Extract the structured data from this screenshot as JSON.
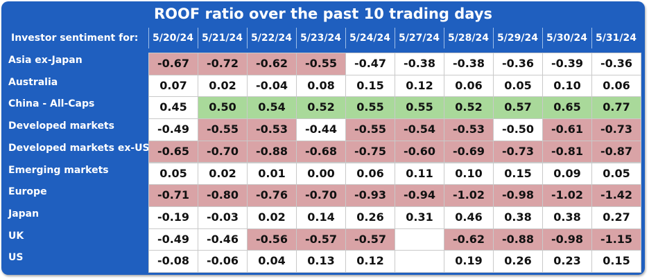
{
  "title": "ROOF ratio over the past 10 trading days",
  "chart_data": {
    "type": "table",
    "title": "ROOF ratio over the past 10 trading days",
    "corner_header": "Investor sentiment for:",
    "columns": [
      "5/20/24",
      "5/21/24",
      "5/22/24",
      "5/23/24",
      "5/24/24",
      "5/27/24",
      "5/28/24",
      "5/29/24",
      "5/30/24",
      "5/31/24"
    ],
    "rows": [
      {
        "label": "Asia ex-Japan",
        "values": [
          "-0.67",
          "-0.72",
          "-0.62",
          "-0.55",
          "-0.47",
          "-0.38",
          "-0.38",
          "-0.36",
          "-0.39",
          "-0.36"
        ],
        "highlights": [
          "neg",
          "neg",
          "neg",
          "neg",
          "none",
          "none",
          "none",
          "none",
          "none",
          "none"
        ]
      },
      {
        "label": "Australia",
        "values": [
          "0.07",
          "0.02",
          "-0.04",
          "0.08",
          "0.15",
          "0.12",
          "0.06",
          "0.05",
          "0.10",
          "0.06"
        ],
        "highlights": [
          "none",
          "none",
          "none",
          "none",
          "none",
          "none",
          "none",
          "none",
          "none",
          "none"
        ]
      },
      {
        "label": "China - All-Caps",
        "values": [
          "0.45",
          "0.50",
          "0.54",
          "0.52",
          "0.55",
          "0.55",
          "0.52",
          "0.57",
          "0.65",
          "0.77"
        ],
        "highlights": [
          "none",
          "pos",
          "pos",
          "pos",
          "pos",
          "pos",
          "pos",
          "pos",
          "pos",
          "pos"
        ]
      },
      {
        "label": "Developed markets",
        "values": [
          "-0.49",
          "-0.55",
          "-0.53",
          "-0.44",
          "-0.55",
          "-0.54",
          "-0.53",
          "-0.50",
          "-0.61",
          "-0.73"
        ],
        "highlights": [
          "none",
          "neg",
          "neg",
          "none",
          "neg",
          "neg",
          "neg",
          "none",
          "neg",
          "neg"
        ]
      },
      {
        "label": "Developed markets ex-US",
        "values": [
          "-0.65",
          "-0.70",
          "-0.88",
          "-0.68",
          "-0.75",
          "-0.60",
          "-0.69",
          "-0.73",
          "-0.81",
          "-0.87"
        ],
        "highlights": [
          "neg",
          "neg",
          "neg",
          "neg",
          "neg",
          "neg",
          "neg",
          "neg",
          "neg",
          "neg"
        ]
      },
      {
        "label": "Emerging markets",
        "values": [
          "0.05",
          "0.02",
          "0.01",
          "0.00",
          "0.06",
          "0.11",
          "0.10",
          "0.15",
          "0.09",
          "0.05"
        ],
        "highlights": [
          "none",
          "none",
          "none",
          "none",
          "none",
          "none",
          "none",
          "none",
          "none",
          "none"
        ]
      },
      {
        "label": "Europe",
        "values": [
          "-0.71",
          "-0.80",
          "-0.76",
          "-0.70",
          "-0.93",
          "-0.94",
          "-1.02",
          "-0.98",
          "-1.02",
          "-1.42"
        ],
        "highlights": [
          "neg",
          "neg",
          "neg",
          "neg",
          "neg",
          "neg",
          "neg",
          "neg",
          "neg",
          "neg"
        ]
      },
      {
        "label": "Japan",
        "values": [
          "-0.19",
          "-0.03",
          "0.02",
          "0.14",
          "0.26",
          "0.31",
          "0.46",
          "0.38",
          "0.38",
          "0.27"
        ],
        "highlights": [
          "none",
          "none",
          "none",
          "none",
          "none",
          "none",
          "none",
          "none",
          "none",
          "none"
        ]
      },
      {
        "label": "UK",
        "values": [
          "-0.49",
          "-0.46",
          "-0.56",
          "-0.57",
          "-0.57",
          "",
          "-0.62",
          "-0.88",
          "-0.98",
          "-1.15"
        ],
        "highlights": [
          "none",
          "none",
          "neg",
          "neg",
          "neg",
          "none",
          "neg",
          "neg",
          "neg",
          "neg"
        ]
      },
      {
        "label": "US",
        "values": [
          "-0.08",
          "-0.06",
          "0.04",
          "0.13",
          "0.12",
          "",
          "0.19",
          "0.26",
          "0.23",
          "0.15"
        ],
        "highlights": [
          "none",
          "none",
          "none",
          "none",
          "none",
          "none",
          "none",
          "none",
          "none",
          "none"
        ]
      }
    ]
  },
  "colors": {
    "frame_bg": "#1f5fbf",
    "negative_fill": "#d9a3a6",
    "positive_fill": "#a9d99a",
    "neutral_fill": "#ffffff"
  }
}
